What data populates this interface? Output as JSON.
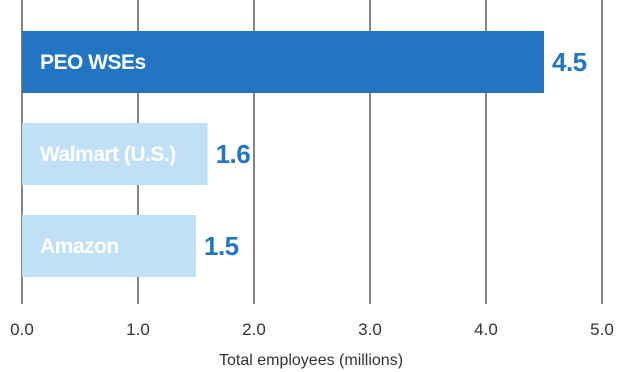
{
  "chart_data": {
    "type": "bar",
    "orientation": "horizontal",
    "categories": [
      "PEO WSEs",
      "Walmart (U.S.)",
      "Amazon"
    ],
    "values": [
      4.5,
      1.6,
      1.5
    ],
    "value_labels": [
      "4.5",
      "1.6",
      "1.5"
    ],
    "xlabel": "Total employees (millions)",
    "xlim": [
      0,
      5
    ],
    "ticks": [
      "0.0",
      "1.0",
      "2.0",
      "3.0",
      "4.0",
      "5.0"
    ],
    "grid": "vertical",
    "colors": {
      "highlight_bar": "#2175c1",
      "other_bar": "#bfe0f5",
      "value_text": "#2175c1",
      "bar_text": "#ffffff",
      "grid": "#333333"
    }
  }
}
